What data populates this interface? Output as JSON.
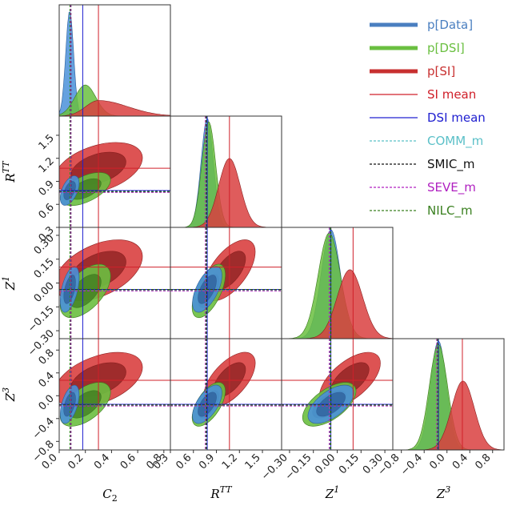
{
  "chart_data": {
    "type": "corner-plot",
    "parameters": [
      {
        "key": "C2",
        "label": "C",
        "sub": "2",
        "ticks": [
          "0.0",
          "0.2",
          "0.4",
          "0.6",
          "0.8"
        ],
        "range": [
          0.0,
          0.85
        ]
      },
      {
        "key": "RTT",
        "label": "R",
        "sup": "TT",
        "ticks": [
          "0.3",
          "0.6",
          "0.9",
          "1.2",
          "1.5"
        ],
        "range": [
          0.3,
          1.75
        ]
      },
      {
        "key": "Z1",
        "label": "Z",
        "sup": "1",
        "ticks": [
          "−0.30",
          "−0.15",
          "0.00",
          "0.15",
          "0.30"
        ],
        "range": [
          -0.35,
          0.35
        ]
      },
      {
        "key": "Z3",
        "label": "Z",
        "sup": "3",
        "ticks": [
          "−0.8",
          "−0.4",
          "0.0",
          "0.4",
          "0.8"
        ],
        "range": [
          -0.95,
          1.0
        ]
      }
    ],
    "series": [
      {
        "name": "p[Data]",
        "color": "#4a90d9",
        "dark": "#2f5f9a",
        "mean": [
          0.08,
          0.78,
          -0.04,
          -0.15
        ],
        "sd": [
          0.03,
          0.08,
          0.06,
          0.14
        ],
        "corr": [
          [
            1,
            0.5,
            0.5,
            0.5
          ],
          [
            0.5,
            1,
            0.6,
            0.6
          ],
          [
            0.5,
            0.6,
            1,
            0.6
          ],
          [
            0.5,
            0.6,
            0.6,
            1
          ]
        ]
      },
      {
        "name": "p[DSI]",
        "color": "#6abf40",
        "dark": "#3d7a1f",
        "mean": [
          0.2,
          0.8,
          -0.05,
          -0.15
        ],
        "sd": [
          0.08,
          0.09,
          0.07,
          0.16
        ],
        "corr": [
          [
            1,
            0.55,
            0.55,
            0.55
          ],
          [
            0.55,
            1,
            0.6,
            0.6
          ],
          [
            0.55,
            0.6,
            1,
            0.6
          ],
          [
            0.55,
            0.6,
            0.6,
            1
          ]
        ]
      },
      {
        "name": "p[SI]",
        "color": "#d94040",
        "dark": "#8a1f1f",
        "mean": [
          0.3,
          1.07,
          0.08,
          0.28
        ],
        "sd": [
          0.14,
          0.14,
          0.08,
          0.2
        ],
        "corr": [
          [
            1,
            0.4,
            0.45,
            0.45
          ],
          [
            0.4,
            1,
            0.6,
            0.6
          ],
          [
            0.45,
            0.6,
            1,
            0.6
          ],
          [
            0.45,
            0.6,
            0.6,
            1
          ]
        ]
      }
    ],
    "reference_lines": [
      {
        "name": "SI mean",
        "color": "#d0202a",
        "style": "solid",
        "values": [
          0.3,
          1.07,
          0.1,
          0.27
        ]
      },
      {
        "name": "DSI mean",
        "color": "#2020d0",
        "style": "solid",
        "values": [
          0.18,
          0.78,
          -0.04,
          -0.15
        ]
      },
      {
        "name": "COMM_m",
        "color": "#5bc0c8",
        "style": "dashed",
        "values": [
          0.085,
          0.76,
          -0.045,
          -0.17
        ]
      },
      {
        "name": "SMIC_m",
        "color": "#111111",
        "style": "dashed",
        "values": [
          0.09,
          0.77,
          -0.04,
          -0.16
        ]
      },
      {
        "name": "SEVE_m",
        "color": "#b020c0",
        "style": "dashed",
        "values": [
          0.088,
          0.755,
          -0.05,
          -0.18
        ]
      },
      {
        "name": "NILC_m",
        "color": "#3a8020",
        "style": "dashed",
        "values": [
          0.082,
          0.765,
          -0.043,
          -0.165
        ]
      }
    ],
    "legend": [
      {
        "label": "p[Data]",
        "color": "#4a7fc0",
        "kind": "thick"
      },
      {
        "label": "p[DSI]",
        "color": "#6abf40",
        "kind": "thick"
      },
      {
        "label": "p[SI]",
        "color": "#c83030",
        "kind": "thick"
      },
      {
        "label": "SI mean",
        "color": "#d0202a",
        "kind": "solid"
      },
      {
        "label": "DSI mean",
        "color": "#2020d0",
        "kind": "solid"
      },
      {
        "label": "COMM_m",
        "color": "#5bc0c8",
        "kind": "dashed"
      },
      {
        "label": "SMIC_m",
        "color": "#111111",
        "kind": "dashed"
      },
      {
        "label": "SEVE_m",
        "color": "#b020c0",
        "kind": "dashed"
      },
      {
        "label": "NILC_m",
        "color": "#3a8020",
        "kind": "dashed"
      }
    ],
    "legend_position": "top-right"
  }
}
